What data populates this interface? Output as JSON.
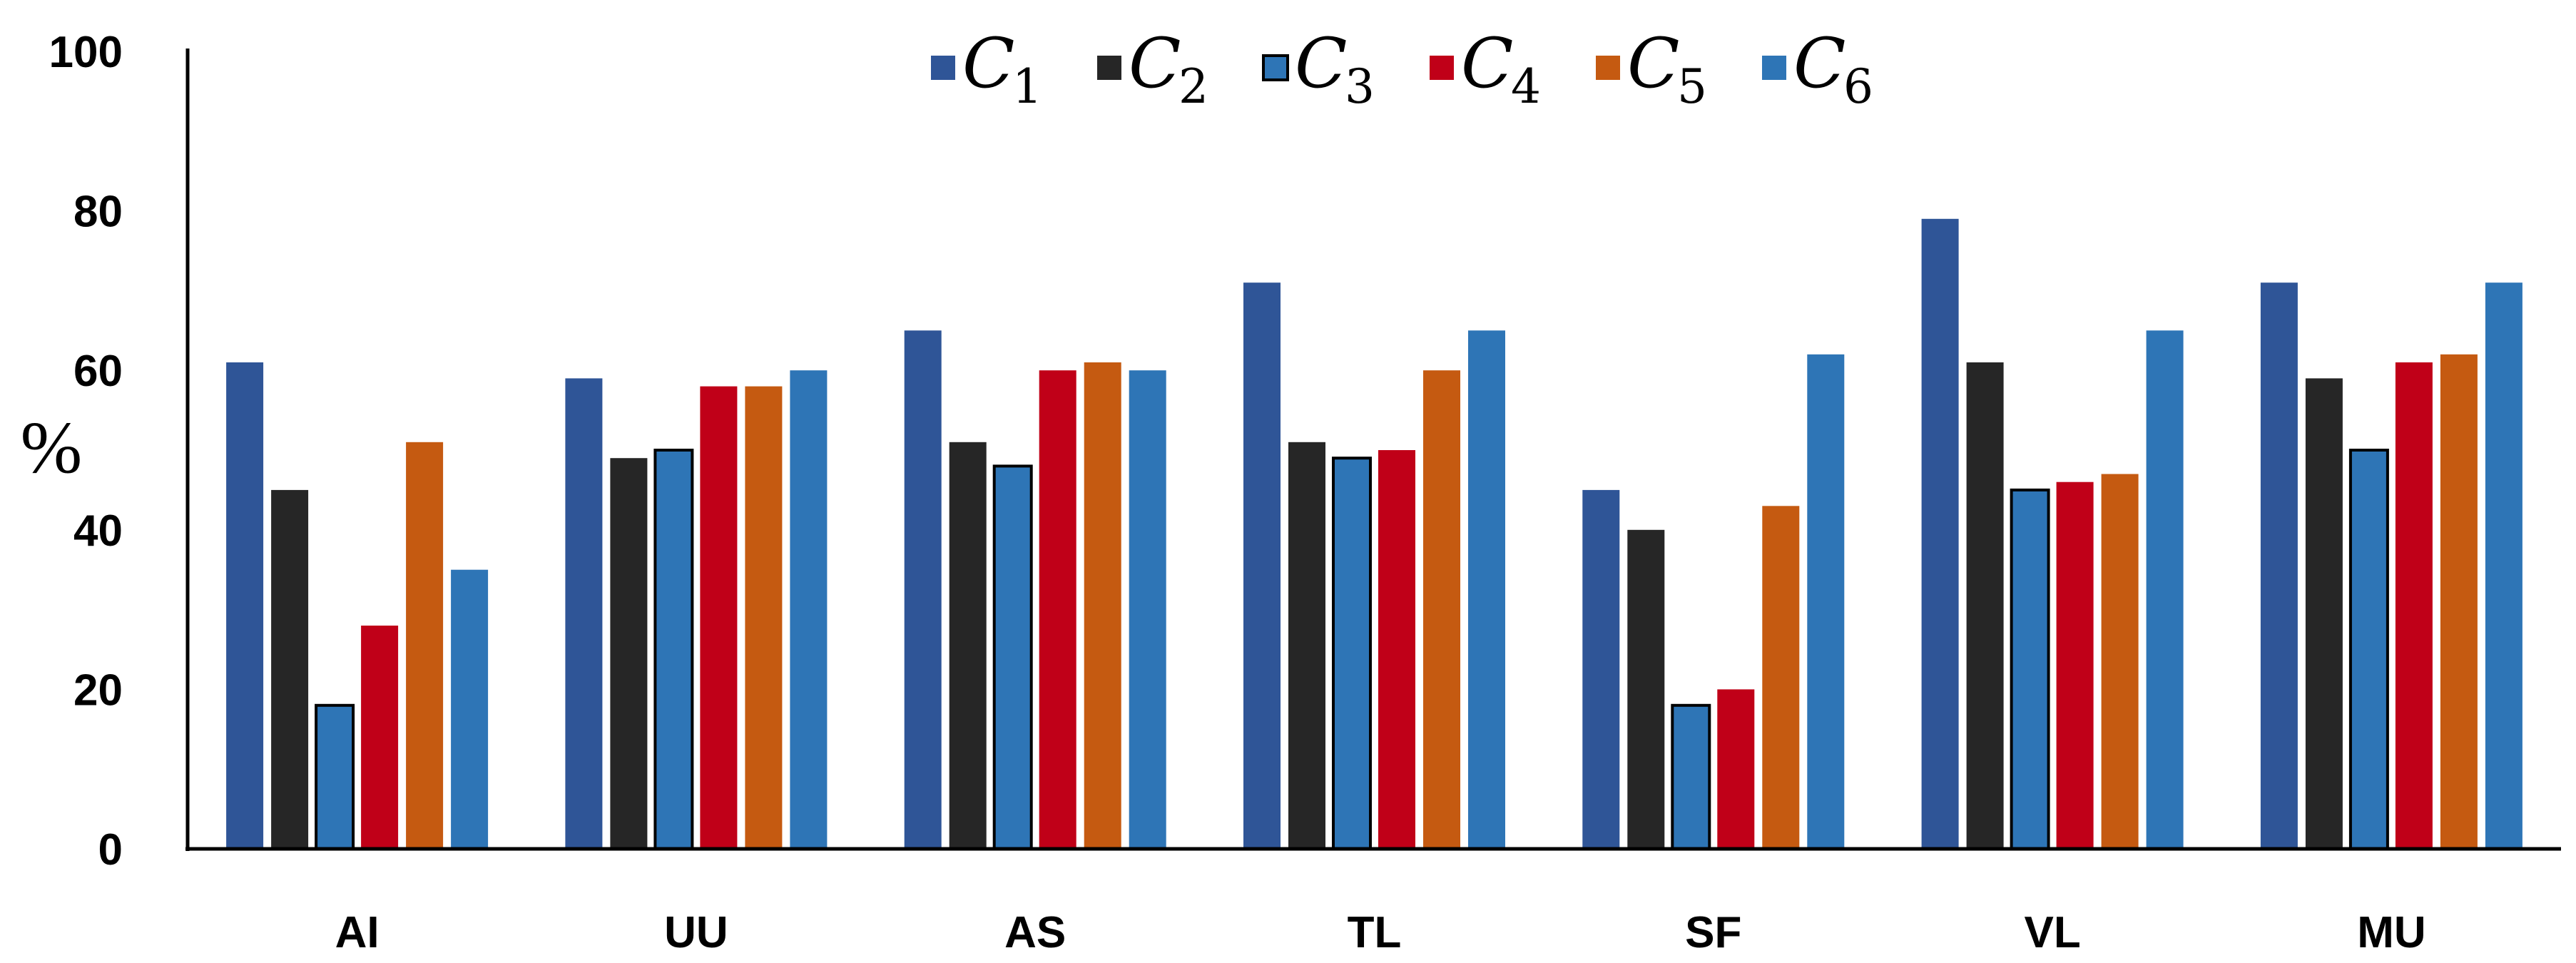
{
  "chart_data": {
    "type": "bar",
    "title": "",
    "xlabel": "",
    "ylabel": "%",
    "ylim": [
      0,
      100
    ],
    "yticks": [
      "0",
      "20",
      "40",
      "60",
      "80",
      "100"
    ],
    "grid": false,
    "legend_position": "top-center",
    "categories": [
      "AI",
      "UU",
      "AS",
      "TL",
      "SF",
      "VL",
      "MU"
    ],
    "series": [
      {
        "name": "C",
        "subscript": "1",
        "color": "#2F5597",
        "outlined": false,
        "values": [
          61,
          59,
          65,
          71,
          45,
          79,
          71
        ]
      },
      {
        "name": "C",
        "subscript": "2",
        "color": "#262626",
        "outlined": false,
        "values": [
          45,
          49,
          51,
          51,
          40,
          61,
          59
        ]
      },
      {
        "name": "C",
        "subscript": "3",
        "color": "#2E75B6",
        "outlined": true,
        "values": [
          18,
          50,
          48,
          49,
          18,
          45,
          50
        ]
      },
      {
        "name": "C",
        "subscript": "4",
        "color": "#C00018",
        "outlined": false,
        "values": [
          28,
          58,
          60,
          50,
          20,
          46,
          61
        ]
      },
      {
        "name": "C",
        "subscript": "5",
        "color": "#C55A11",
        "outlined": false,
        "values": [
          51,
          58,
          61,
          60,
          43,
          47,
          62
        ]
      },
      {
        "name": "C",
        "subscript": "6",
        "color": "#2E75B6",
        "outlined": false,
        "values": [
          35,
          60,
          60,
          65,
          62,
          65,
          71
        ]
      }
    ]
  }
}
